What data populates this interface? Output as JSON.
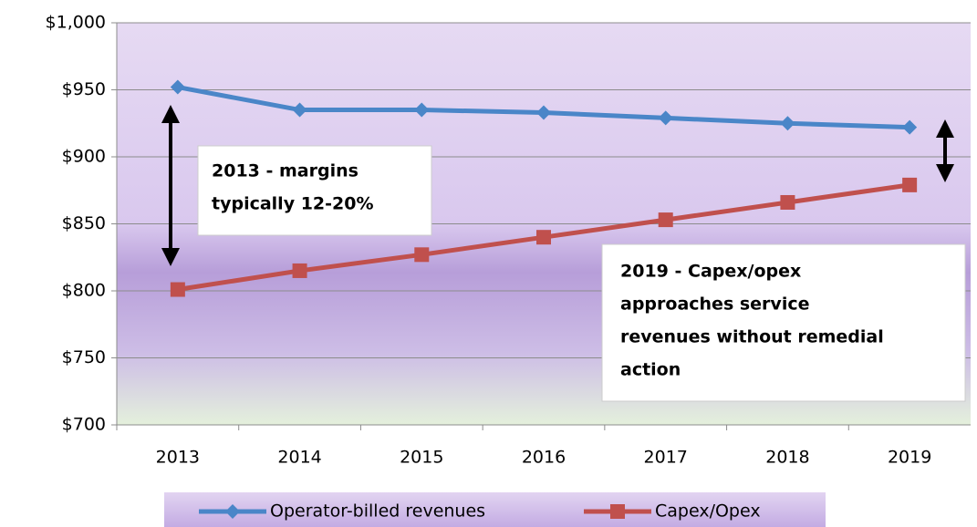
{
  "chart_data": {
    "type": "line",
    "categories": [
      "2013",
      "2014",
      "2015",
      "2016",
      "2017",
      "2018",
      "2019"
    ],
    "series": [
      {
        "name": "Operator-billed revenues",
        "color": "#4a86c8",
        "marker": "diamond",
        "values": [
          952,
          935,
          935,
          933,
          929,
          925,
          922
        ]
      },
      {
        "name": "Capex/Opex",
        "color": "#c0504d",
        "marker": "square",
        "values": [
          801,
          815,
          827,
          840,
          853,
          866,
          879
        ]
      }
    ],
    "ylim": [
      700,
      1000
    ],
    "yticks": [
      {
        "value": 700,
        "label": "$700"
      },
      {
        "value": 750,
        "label": "$750"
      },
      {
        "value": 800,
        "label": "$800"
      },
      {
        "value": 850,
        "label": "$850"
      },
      {
        "value": 900,
        "label": "$900"
      },
      {
        "value": 950,
        "label": "$950"
      },
      {
        "value": 1000,
        "label": "$1,000"
      }
    ],
    "grid": true,
    "legend": "bottom",
    "annotations": [
      {
        "lines": [
          "2013 - margins",
          "typically 12-20%"
        ]
      },
      {
        "lines": [
          "2019  - Capex/opex",
          "approaches service",
          "revenues without remedial",
          "action"
        ]
      }
    ]
  }
}
